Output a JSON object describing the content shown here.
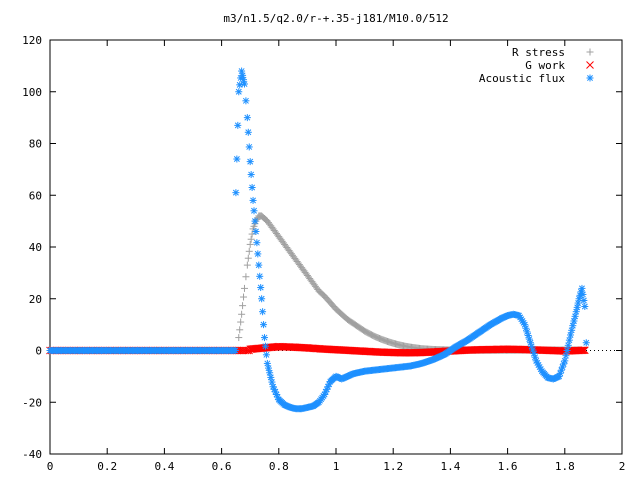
{
  "chart_data": {
    "type": "scatter",
    "title": "m3/n1.5/q2.0/r-+.35-j181/M10.0/512",
    "xlabel": "",
    "ylabel": "",
    "xlim": [
      0,
      2
    ],
    "ylim": [
      -40,
      120
    ],
    "xticks": [
      "0",
      "0.2",
      "0.4",
      "0.6",
      "0.8",
      "1",
      "1.2",
      "1.4",
      "1.6",
      "1.8",
      "2"
    ],
    "yticks": [
      "-40",
      "-20",
      "0",
      "20",
      "40",
      "60",
      "80",
      "100",
      "120"
    ],
    "grid": false,
    "legend_position": "top-right",
    "series": [
      {
        "name": "R stress",
        "marker": "plus",
        "color": "#a0a0a0",
        "points": [
          [
            0.66,
            5
          ],
          [
            0.67,
            14
          ],
          [
            0.68,
            24
          ],
          [
            0.69,
            33
          ],
          [
            0.7,
            41
          ],
          [
            0.71,
            47
          ],
          [
            0.72,
            50
          ],
          [
            0.73,
            52
          ],
          [
            0.74,
            52
          ],
          [
            0.75,
            51
          ],
          [
            0.76,
            50
          ],
          [
            0.78,
            47
          ],
          [
            0.8,
            44
          ],
          [
            0.82,
            41
          ],
          [
            0.84,
            38
          ],
          [
            0.86,
            35
          ],
          [
            0.88,
            32
          ],
          [
            0.9,
            29
          ],
          [
            0.92,
            26
          ],
          [
            0.94,
            23
          ],
          [
            0.96,
            21
          ],
          [
            0.98,
            18.5
          ],
          [
            1.0,
            16
          ],
          [
            1.02,
            14
          ],
          [
            1.04,
            12
          ],
          [
            1.06,
            10.5
          ],
          [
            1.08,
            9
          ],
          [
            1.1,
            7.5
          ],
          [
            1.12,
            6.3
          ],
          [
            1.14,
            5.2
          ],
          [
            1.16,
            4.3
          ],
          [
            1.18,
            3.5
          ],
          [
            1.2,
            2.8
          ],
          [
            1.22,
            2.2
          ],
          [
            1.24,
            1.7
          ],
          [
            1.26,
            1.3
          ],
          [
            1.28,
            1.0
          ],
          [
            1.3,
            0.7
          ],
          [
            1.34,
            0.4
          ],
          [
            1.4,
            0.2
          ],
          [
            1.5,
            0.1
          ],
          [
            1.6,
            0.1
          ],
          [
            1.7,
            0.2
          ],
          [
            1.8,
            0.2
          ],
          [
            1.86,
            0.2
          ]
        ]
      },
      {
        "name": "G work",
        "marker": "cross",
        "color": "#ff0000",
        "points": [
          [
            0.7,
            0.5
          ],
          [
            0.75,
            1.0
          ],
          [
            0.8,
            1.5
          ],
          [
            0.85,
            1.3
          ],
          [
            0.9,
            1.0
          ],
          [
            0.95,
            0.6
          ],
          [
            1.0,
            0.3
          ],
          [
            1.05,
            0.0
          ],
          [
            1.1,
            -0.3
          ],
          [
            1.15,
            -0.6
          ],
          [
            1.2,
            -0.8
          ],
          [
            1.25,
            -0.9
          ],
          [
            1.3,
            -0.8
          ],
          [
            1.35,
            -0.5
          ],
          [
            1.4,
            -0.2
          ],
          [
            1.45,
            0.1
          ],
          [
            1.5,
            0.3
          ],
          [
            1.55,
            0.4
          ],
          [
            1.6,
            0.5
          ],
          [
            1.65,
            0.4
          ],
          [
            1.7,
            0.2
          ],
          [
            1.75,
            0.0
          ],
          [
            1.8,
            -0.2
          ],
          [
            1.85,
            0.0
          ],
          [
            1.87,
            0.1
          ]
        ]
      },
      {
        "name": "Acoustic flux",
        "marker": "star",
        "color": "#1e90ff",
        "points": [
          [
            0.65,
            61
          ],
          [
            0.66,
            100
          ],
          [
            0.67,
            108
          ],
          [
            0.68,
            103
          ],
          [
            0.69,
            90
          ],
          [
            0.7,
            73
          ],
          [
            0.71,
            58
          ],
          [
            0.72,
            46
          ],
          [
            0.73,
            33
          ],
          [
            0.74,
            20
          ],
          [
            0.75,
            5
          ],
          [
            0.76,
            -5
          ],
          [
            0.78,
            -14
          ],
          [
            0.8,
            -19
          ],
          [
            0.82,
            -21
          ],
          [
            0.84,
            -22
          ],
          [
            0.86,
            -22.5
          ],
          [
            0.88,
            -22.5
          ],
          [
            0.9,
            -22
          ],
          [
            0.92,
            -21.5
          ],
          [
            0.94,
            -20
          ],
          [
            0.96,
            -17
          ],
          [
            0.98,
            -12
          ],
          [
            1.0,
            -10
          ],
          [
            1.02,
            -11
          ],
          [
            1.04,
            -10
          ],
          [
            1.06,
            -9
          ],
          [
            1.08,
            -8.5
          ],
          [
            1.1,
            -8
          ],
          [
            1.14,
            -7.5
          ],
          [
            1.18,
            -7
          ],
          [
            1.22,
            -6.5
          ],
          [
            1.26,
            -6
          ],
          [
            1.3,
            -5
          ],
          [
            1.34,
            -3.5
          ],
          [
            1.38,
            -1.5
          ],
          [
            1.4,
            0
          ],
          [
            1.42,
            1.5
          ],
          [
            1.46,
            4
          ],
          [
            1.5,
            7
          ],
          [
            1.54,
            10
          ],
          [
            1.58,
            12.5
          ],
          [
            1.6,
            13.5
          ],
          [
            1.62,
            14
          ],
          [
            1.64,
            13.5
          ],
          [
            1.66,
            10
          ],
          [
            1.68,
            3
          ],
          [
            1.7,
            -4
          ],
          [
            1.72,
            -8
          ],
          [
            1.74,
            -10.5
          ],
          [
            1.76,
            -11
          ],
          [
            1.78,
            -10
          ],
          [
            1.8,
            -4
          ],
          [
            1.82,
            6
          ],
          [
            1.84,
            15
          ],
          [
            1.85,
            20
          ],
          [
            1.86,
            24
          ],
          [
            1.87,
            17
          ],
          [
            1.875,
            3
          ]
        ]
      }
    ]
  }
}
